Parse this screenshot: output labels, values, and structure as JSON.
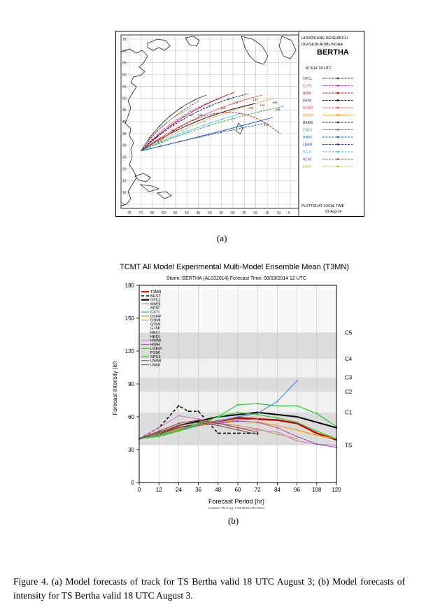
{
  "map_panel": {
    "header_line1": "HURRICANE RESEARCH",
    "header_line2": "DIVISION AOML/NOAA",
    "storm": "BERTHA",
    "valid_time": "8/ 3/14 18 UTC",
    "footer_line1": "PLOTTED AT LOCAL TIME",
    "footer_line2": "03-Aug-14",
    "lat_labels": [
      "75",
      "70",
      "65",
      "60",
      "55",
      "50",
      "45",
      "40",
      "35",
      "30",
      "25",
      "20",
      "15",
      "10",
      "5"
    ],
    "lon_labels": [
      "75",
      "70",
      "65",
      "60",
      "55",
      "50",
      "45",
      "40",
      "35",
      "30",
      "25",
      "20",
      "15",
      "10",
      "5"
    ],
    "track_labels": [
      "120",
      "120",
      "144",
      "144",
      "144",
      "144",
      "168",
      "168",
      "144",
      "96"
    ],
    "legend": [
      {
        "name": "OFCL",
        "color": "#333333"
      },
      {
        "name": "CLP5",
        "color": "#cc33cc"
      },
      {
        "name": "AVNI",
        "color": "#cc0000"
      },
      {
        "name": "GFDI",
        "color": "#000080"
      },
      {
        "name": "BAMD",
        "color": "#ff4444"
      },
      {
        "name": "BAMM",
        "color": "#ff8800"
      },
      {
        "name": "BAMS",
        "color": "#222222"
      },
      {
        "name": "CMCI",
        "color": "#22aa22"
      },
      {
        "name": "HWFI",
        "color": "#0066cc"
      },
      {
        "name": "LBAR",
        "color": "#3333cc"
      },
      {
        "name": "NGXI",
        "color": "#33bbff"
      },
      {
        "name": "AEMI",
        "color": "#8833cc"
      },
      {
        "name": "EGRI",
        "color": "#99cc33"
      }
    ]
  },
  "caption_a": "(a)",
  "caption_b": "(b)",
  "intensity_panel": {
    "title": "TCMT All Model Experimental Multi-Model Ensemble Mean (T3MN)",
    "subtitle": "Storm: BERTHA (AL032014)   Forecast Time: 08/03/2014 12 UTC",
    "created": "Created: Thu Aug. 7 03:39:54 UTC 2014",
    "category_labels": [
      "C5",
      "C4",
      "C3",
      "C2",
      "C1",
      "TS"
    ],
    "legend_text": [
      "T3MN",
      "BEST",
      "OFCL",
      "MMSI",
      "APSI",
      "CXTI",
      "DSHP",
      "GHMI",
      "GPMI",
      "GTMI",
      "HECI",
      "HEDI",
      "HWMI",
      "HWFI",
      "LGEM",
      "PSMI",
      "SPC3",
      "UWMI",
      "UW4I"
    ]
  },
  "chart_data": {
    "type": "line",
    "xlabel": "Forecast Period (hr)",
    "ylabel": "Forecast Intensity (kt)",
    "xlim": [
      0,
      120
    ],
    "ylim": [
      0,
      180
    ],
    "xticks": [
      0,
      12,
      24,
      36,
      48,
      60,
      72,
      84,
      96,
      108,
      120
    ],
    "yticks": [
      0,
      30,
      60,
      90,
      120,
      150,
      180
    ],
    "category_bands": [
      {
        "label": "TS",
        "min": 34,
        "max": 64
      },
      {
        "label": "C1",
        "min": 64,
        "max": 83
      },
      {
        "label": "C2",
        "min": 83,
        "max": 96
      },
      {
        "label": "C3",
        "min": 96,
        "max": 113
      },
      {
        "label": "C4",
        "min": 113,
        "max": 137
      },
      {
        "label": "C5",
        "min": 137,
        "max": 180
      }
    ],
    "series": [
      {
        "name": "T3MN",
        "color": "#cc0000",
        "width": 2.5,
        "dash": "",
        "x": [
          0,
          12,
          24,
          36,
          48,
          60,
          72,
          84,
          96,
          108,
          120
        ],
        "y": [
          40,
          44,
          50,
          53,
          56,
          59,
          58,
          57,
          54,
          45,
          39
        ]
      },
      {
        "name": "BEST",
        "color": "#000000",
        "width": 1.5,
        "dash": "4,3",
        "x": [
          0,
          12,
          24,
          30,
          36,
          42,
          48,
          54,
          60,
          66,
          72
        ],
        "y": [
          40,
          50,
          70,
          65,
          65,
          55,
          45,
          45,
          45,
          45,
          45
        ]
      },
      {
        "name": "OFCL",
        "color": "#000000",
        "width": 2,
        "dash": "",
        "x": [
          0,
          12,
          24,
          36,
          48,
          60,
          72,
          84,
          96,
          108,
          120
        ],
        "y": [
          40,
          45,
          52,
          56,
          60,
          62,
          64,
          62,
          60,
          55,
          50
        ]
      },
      {
        "name": "MMSI",
        "color": "#888888",
        "width": 1,
        "dash": "",
        "x": [
          0,
          12,
          24,
          36,
          48,
          60,
          72
        ],
        "y": [
          40,
          44,
          48,
          52,
          55,
          57,
          58
        ]
      },
      {
        "name": "CXTI",
        "color": "#4a90e2",
        "width": 1.2,
        "dash": "",
        "x": [
          0,
          12,
          24,
          36,
          48,
          60,
          72,
          84,
          96
        ],
        "y": [
          40,
          43,
          47,
          52,
          56,
          60,
          63,
          74,
          93
        ]
      },
      {
        "name": "DSHP",
        "color": "#ff9900",
        "width": 1.2,
        "dash": "",
        "x": [
          0,
          12,
          24,
          36,
          48,
          60,
          72,
          84,
          96,
          108,
          120
        ],
        "y": [
          40,
          44,
          49,
          53,
          55,
          56,
          55,
          52,
          48,
          43,
          40
        ]
      },
      {
        "name": "GHMI",
        "color": "#cc9933",
        "width": 1,
        "dash": "",
        "x": [
          0,
          12,
          24,
          36,
          48,
          60,
          72,
          84,
          96
        ],
        "y": [
          40,
          45,
          52,
          55,
          54,
          52,
          49,
          44,
          40
        ]
      },
      {
        "name": "HWMI",
        "color": "#cc77cc",
        "width": 1,
        "dash": "",
        "x": [
          0,
          12,
          24,
          36,
          48,
          60,
          72,
          84,
          96,
          108,
          120
        ],
        "y": [
          40,
          50,
          61,
          58,
          55,
          50,
          48,
          46,
          38,
          35,
          34
        ]
      },
      {
        "name": "HWFI",
        "color": "#aa44aa",
        "width": 1,
        "dash": "",
        "x": [
          0,
          12,
          24,
          36,
          48,
          60,
          72,
          84,
          96,
          108,
          120
        ],
        "y": [
          40,
          44,
          50,
          52,
          54,
          56,
          55,
          50,
          42,
          35,
          32
        ]
      },
      {
        "name": "LGEM",
        "color": "#33cc33",
        "width": 1.2,
        "dash": "",
        "x": [
          0,
          12,
          24,
          36,
          48,
          60,
          72,
          84,
          96,
          108,
          120
        ],
        "y": [
          40,
          43,
          48,
          54,
          60,
          64,
          62,
          59,
          55,
          47,
          40
        ]
      },
      {
        "name": "SPC3",
        "color": "#22cc22",
        "width": 1.2,
        "dash": "",
        "x": [
          0,
          12,
          24,
          36,
          48,
          60,
          72,
          84,
          96,
          108,
          120
        ],
        "y": [
          40,
          42,
          47,
          53,
          60,
          71,
          72,
          70,
          70,
          63,
          51
        ]
      },
      {
        "name": "UWMI",
        "color": "#555555",
        "width": 1,
        "dash": "",
        "x": [
          0,
          12,
          24,
          36,
          48,
          60,
          72
        ],
        "y": [
          40,
          46,
          52,
          55,
          52,
          48,
          44
        ]
      },
      {
        "name": "UW4I",
        "color": "#aa3333",
        "width": 1,
        "dash": "",
        "x": [
          0,
          12,
          24,
          36,
          48,
          60,
          72
        ],
        "y": [
          40,
          47,
          54,
          57,
          54,
          50,
          46
        ]
      }
    ]
  },
  "figure_caption": "Figure 4. (a) Model forecasts of track for TS Bertha valid 18 UTC August 3; (b) Model forecasts of intensity for TS Bertha valid 18 UTC August 3."
}
